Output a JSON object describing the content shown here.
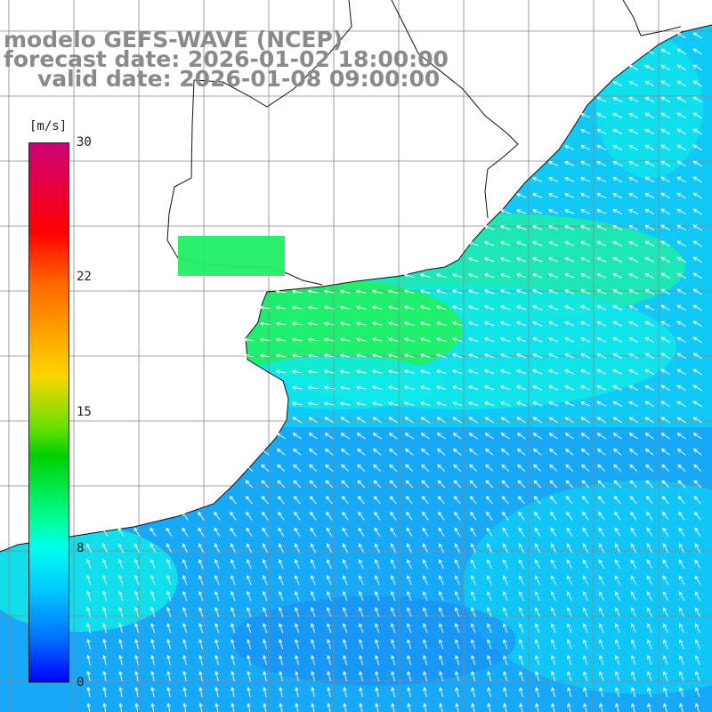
{
  "title": {
    "line1": "modelo GEFS-WAVE (NCEP)",
    "line2": "forecast date: 2026-01-02 18:00:00",
    "line3": "valid date: 2026-01-08 09:00:00"
  },
  "colorbar": {
    "unit": "[m/s]",
    "min": 0,
    "max": 30,
    "ticks": [
      "30",
      "22",
      "15",
      "8",
      "0"
    ],
    "colors": [
      "#cc0077",
      "#ff0000",
      "#ff6600",
      "#ffd400",
      "#00d000",
      "#00ff99",
      "#00ffee",
      "#00c8ff",
      "#0070ff",
      "#0000ff"
    ]
  },
  "map": {
    "land_color": "#ffffff",
    "grid_color": "#888888",
    "coast_color": "#111111",
    "arrow_color": "#ffffff",
    "field_colors": {
      "green": "#22ee66",
      "green_cyan": "#22f0a0",
      "cyan": "#10e8e8",
      "light_blue": "#10ccf5",
      "blue": "#18a8f8",
      "deep_blue": "#1a8cf5"
    }
  }
}
